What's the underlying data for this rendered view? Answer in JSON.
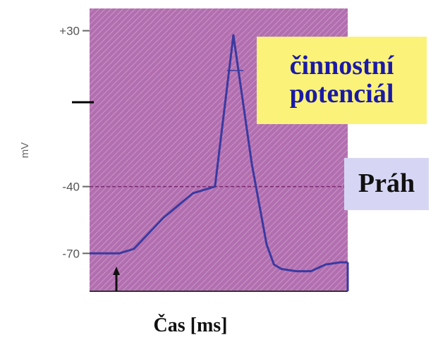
{
  "chart_data": {
    "type": "line",
    "title": "",
    "xlabel": "Čas [ms]",
    "ylabel": "mV",
    "y_ticks": [
      "+30",
      "-40",
      "-70"
    ],
    "y_tick_values": [
      30,
      -40,
      -70
    ],
    "ylim": [
      -87,
      40
    ],
    "xlim": [
      0,
      7
    ],
    "grid": false,
    "series": [
      {
        "x": [
          0,
          0.8,
          1.2,
          2.0,
          2.8,
          3.4,
          3.9,
          4.4,
          4.8,
          5.0,
          5.2,
          5.6,
          6.0,
          6.4,
          6.8,
          7.0
        ],
        "y": [
          -70,
          -70,
          -68,
          -54,
          -43,
          -40,
          28,
          -30,
          -66,
          -75,
          -77,
          -78,
          -78,
          -75,
          -74,
          -74
        ]
      }
    ],
    "annotations": {
      "action_potential": [
        "činnostní",
        "potenciál"
      ],
      "threshold": "Práh",
      "threshold_value": -40
    },
    "colors": {
      "plot_background": "#b26fb0",
      "hatch": "#d3a0cf",
      "trace": "#3a3aa0",
      "threshold_line": "#7a2a70",
      "callout_ap_bg": "#fbf27a",
      "callout_ap_text": "#1a1aa6",
      "callout_threshold_bg": "#d6d6f4",
      "callout_threshold_text": "#111111"
    }
  }
}
